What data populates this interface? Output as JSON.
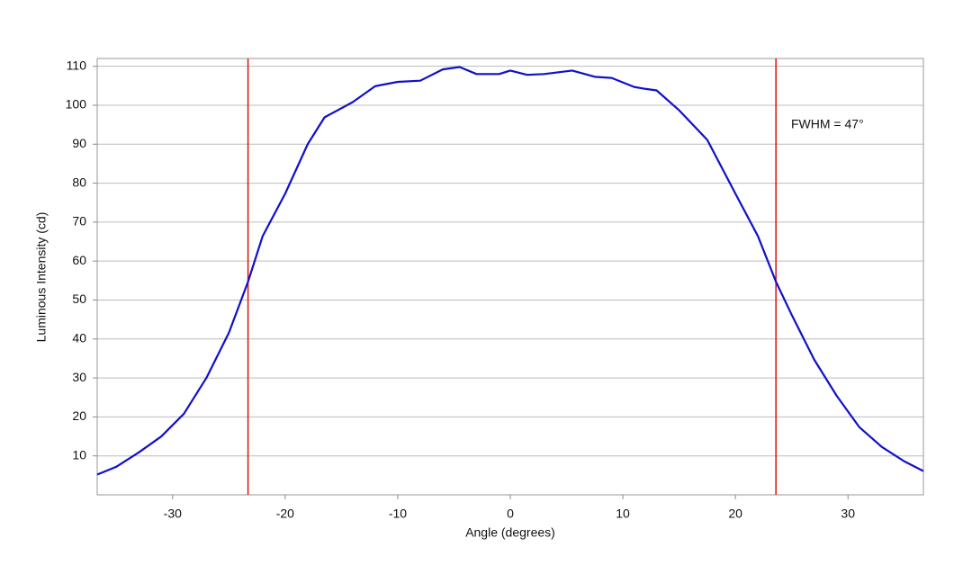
{
  "chart_data": {
    "type": "line",
    "x_label": "Angle (degrees)",
    "y_label": "Luminous Intensity (cd)",
    "annotation": "FWHM = 47°",
    "x": [
      -36.7,
      -35,
      -33,
      -31,
      -29,
      -27,
      -25,
      -23.3,
      -22,
      -20,
      -18,
      -16.5,
      -14,
      -12,
      -10,
      -8,
      -6,
      -4.5,
      -3,
      -1,
      0,
      1.5,
      3,
      5.5,
      7.5,
      9,
      11,
      12,
      13,
      15,
      17.5,
      20,
      22,
      23.6,
      25,
      27,
      29,
      31,
      33,
      35,
      36.7
    ],
    "series": [
      {
        "color": "#1010cc",
        "values": [
          5.2,
          7.2,
          10.9,
          15,
          20.8,
          30,
          41.6,
          54.7,
          66.4,
          77.3,
          90,
          96.9,
          100.8,
          104.9,
          106,
          106.3,
          109.2,
          109.8,
          108,
          108,
          108.9,
          107.8,
          108,
          108.9,
          107.3,
          107,
          104.7,
          104.2,
          103.8,
          98.7,
          91.1,
          77.3,
          66.4,
          54.7,
          46.2,
          34.7,
          25.4,
          17.4,
          12.3,
          8.6,
          6.1
        ]
      }
    ],
    "vlines": {
      "color": "#dd1111",
      "x": [
        -23.3,
        23.6
      ]
    },
    "xlim": [
      -36.7,
      36.7
    ],
    "xticks": [
      -30,
      -20,
      -10,
      0,
      10,
      20,
      30
    ],
    "ylim": [
      0,
      112
    ],
    "yticks": [
      10,
      20,
      30,
      40,
      50,
      60,
      70,
      80,
      90,
      100,
      110
    ],
    "grid": true
  }
}
